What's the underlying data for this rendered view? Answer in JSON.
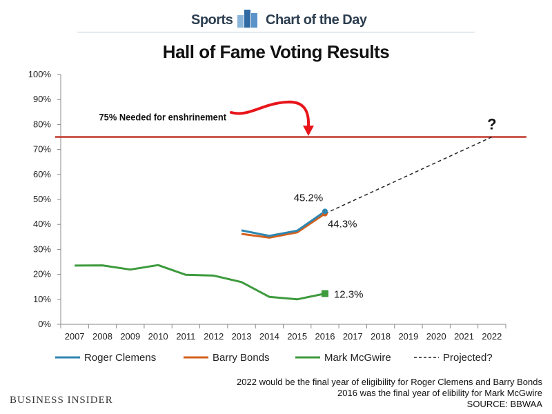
{
  "header": {
    "left_label": "Sports",
    "right_label": "Chart of the Day",
    "icon": "bar-chart-icon",
    "icon_colors": [
      "#8ab4d8",
      "#2f6aa3",
      "#5b93c8"
    ]
  },
  "footer": {
    "note_1": "2022 would be the final year of eligibility for Roger Clemens and Barry Bonds",
    "note_2": "2016 was the final year of elibility for Mark McGwire",
    "source": "SOURCE: BBWAA",
    "brand": "BUSINESS INSIDER"
  },
  "chart_data": {
    "type": "line",
    "title": "Hall of Fame Voting Results",
    "x": [
      "2007",
      "2008",
      "2009",
      "2010",
      "2011",
      "2012",
      "2013",
      "2014",
      "2015",
      "2016",
      "2017",
      "2018",
      "2019",
      "2020",
      "2021",
      "2022"
    ],
    "ylim": [
      0,
      100
    ],
    "yticks": [
      0,
      10,
      20,
      30,
      40,
      50,
      60,
      70,
      80,
      90,
      100
    ],
    "ytick_labels": [
      "0%",
      "10%",
      "20%",
      "30%",
      "40%",
      "50%",
      "60%",
      "70%",
      "80%",
      "90%",
      "100%"
    ],
    "grid": false,
    "legend_position": "bottom",
    "series": [
      {
        "name": "Roger Clemens",
        "color": "#2e86b0",
        "style": "solid",
        "points": [
          [
            "2013",
            37.6
          ],
          [
            "2014",
            35.4
          ],
          [
            "2015",
            37.5
          ],
          [
            "2016",
            45.2
          ]
        ]
      },
      {
        "name": "Barry Bonds",
        "color": "#d4601c",
        "style": "solid",
        "points": [
          [
            "2013",
            36.2
          ],
          [
            "2014",
            34.7
          ],
          [
            "2015",
            36.8
          ],
          [
            "2016",
            44.3
          ]
        ]
      },
      {
        "name": "Mark McGwire",
        "color": "#3d9a3d",
        "style": "solid",
        "points": [
          [
            "2007",
            23.5
          ],
          [
            "2008",
            23.6
          ],
          [
            "2009",
            21.9
          ],
          [
            "2010",
            23.7
          ],
          [
            "2011",
            19.8
          ],
          [
            "2012",
            19.5
          ],
          [
            "2013",
            16.9
          ],
          [
            "2014",
            11.0
          ],
          [
            "2015",
            10.0
          ],
          [
            "2016",
            12.3
          ]
        ]
      },
      {
        "name": "Projected?",
        "color": "#222222",
        "style": "dashed",
        "points": [
          [
            "2016",
            44.3
          ],
          [
            "2022",
            75
          ]
        ]
      }
    ],
    "threshold": {
      "value": 75,
      "color": "#c0392b"
    },
    "annotations": [
      {
        "text": "75% Needed for enshrinement"
      },
      {
        "text": "45.2%"
      },
      {
        "text": "44.3%"
      },
      {
        "text": "12.3%"
      },
      {
        "text": "?"
      }
    ]
  }
}
